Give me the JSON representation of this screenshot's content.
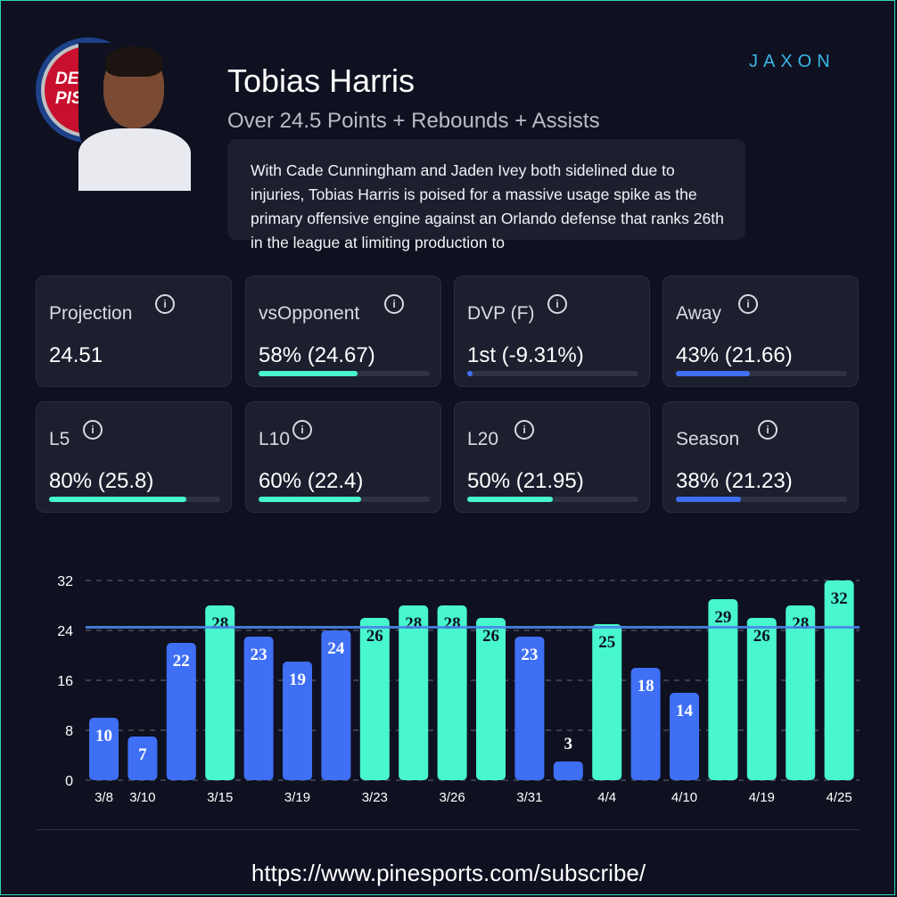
{
  "header": {
    "player_name": "Tobias Harris",
    "prop_line": "Over 24.5 Points + Rebounds + Assists",
    "team_logo_text": "DETROIT PISTONS",
    "brand": "JAXON"
  },
  "blurb": {
    "text": "With Cade Cunningham and Jaden Ivey both sidelined due to injuries, Tobias Harris is poised for a massive usage spike as the primary offensive engine against an Orlando defense that ranks 26th in the league at limiting production to"
  },
  "colors": {
    "hit": "#48f7cf",
    "miss": "#3f6ff5",
    "line": "#4a86e8",
    "accent_border": "#2fd9b3"
  },
  "stats": [
    {
      "label": "Projection",
      "value": "24.51",
      "bar": null,
      "bar_color": null
    },
    {
      "label": "vsOpponent",
      "value": "58% (24.67)",
      "bar": 0.58,
      "bar_color": "#48f7cf"
    },
    {
      "label": "DVP (F)",
      "value": "1st (-9.31%)",
      "bar": 0.03,
      "bar_color": "#3f6ff5"
    },
    {
      "label": "Away",
      "value": "43% (21.66)",
      "bar": 0.43,
      "bar_color": "#3f6ff5"
    },
    {
      "label": "L5",
      "value": "80% (25.8)",
      "bar": 0.8,
      "bar_color": "#48f7cf"
    },
    {
      "label": "L10",
      "value": "60% (22.4)",
      "bar": 0.6,
      "bar_color": "#48f7cf"
    },
    {
      "label": "L20",
      "value": "50% (21.95)",
      "bar": 0.5,
      "bar_color": "#48f7cf"
    },
    {
      "label": "Season",
      "value": "38% (21.23)",
      "bar": 0.38,
      "bar_color": "#3f6ff5"
    }
  ],
  "info_glyph": "i",
  "chart_data": {
    "type": "bar",
    "categories": [
      "3/8",
      "3/10",
      "",
      "3/15",
      "",
      "3/19",
      "",
      "3/23",
      "",
      "3/26",
      "",
      "3/31",
      "",
      "4/4",
      "",
      "4/10",
      "",
      "4/19",
      "",
      "4/25"
    ],
    "values": [
      10,
      7,
      22,
      28,
      23,
      19,
      24,
      26,
      28,
      28,
      26,
      23,
      3,
      25,
      18,
      14,
      29,
      26,
      28,
      32
    ],
    "ylim": [
      0,
      32
    ],
    "yticks": [
      0,
      8,
      16,
      24,
      32
    ],
    "line_value": 24.5,
    "grid": true,
    "title": "",
    "xlabel": "",
    "ylabel": ""
  },
  "footer": {
    "url": "https://www.pinesports.com/subscribe/"
  }
}
